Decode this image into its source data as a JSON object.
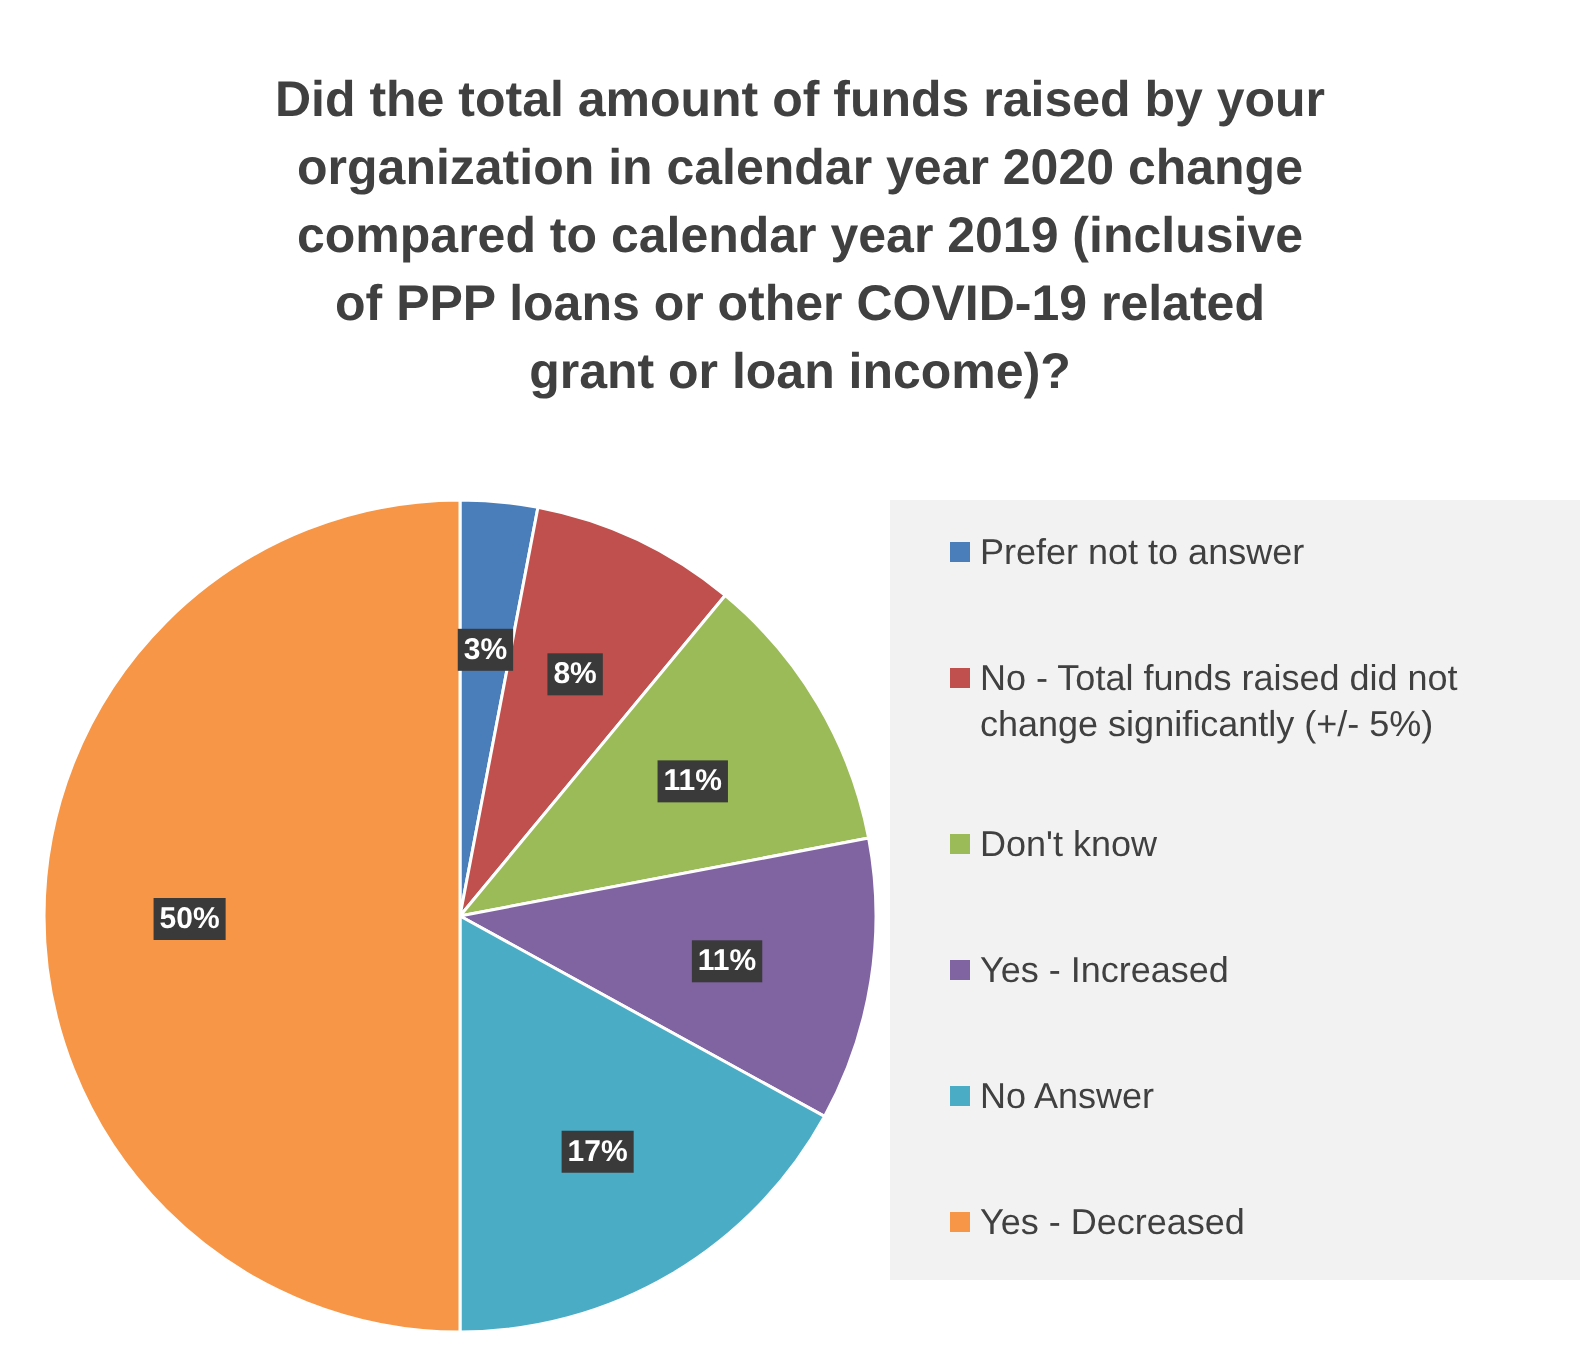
{
  "chart_data": {
    "type": "pie",
    "title": "Did the total amount of funds raised by your organization in calendar year 2020 change compared to calendar year 2019 (inclusive of PPP loans or other COVID-19 related grant or loan income)?",
    "categories": [
      "Prefer not to answer",
      "No - Total funds raised did not change significantly (+/- 5%)",
      "Don't know",
      "Yes - Increased",
      "No Answer",
      "Yes - Decreased"
    ],
    "values": [
      3,
      8,
      11,
      11,
      17,
      50
    ],
    "colors": [
      "#4a7ebb",
      "#c0504d",
      "#9bbb59",
      "#8064a2",
      "#4bacc6",
      "#f79646"
    ],
    "value_labels": [
      "3%",
      "8%",
      "11%",
      "11%",
      "17%",
      "50%"
    ],
    "legend": "right"
  }
}
